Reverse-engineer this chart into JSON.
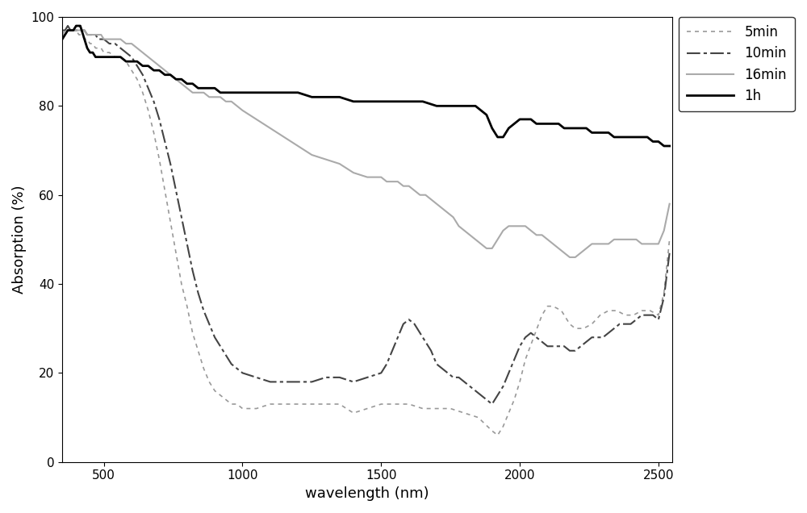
{
  "title": "",
  "xlabel": "wavelength (nm)",
  "ylabel": "Absorption (%)",
  "xlim": [
    350,
    2550
  ],
  "ylim": [
    0,
    100
  ],
  "xticks": [
    500,
    1000,
    1500,
    2000,
    2500
  ],
  "yticks": [
    0,
    20,
    40,
    60,
    80,
    100
  ],
  "figure_size": [
    10.0,
    6.36
  ],
  "dpi": 100,
  "series": [
    {
      "label": "5min",
      "color": "#999999",
      "linestyle": "dotted",
      "linewidth": 1.2,
      "points": [
        [
          350,
          96
        ],
        [
          360,
          97
        ],
        [
          370,
          98
        ],
        [
          380,
          97
        ],
        [
          390,
          97
        ],
        [
          400,
          97
        ],
        [
          410,
          96
        ],
        [
          420,
          96
        ],
        [
          430,
          95
        ],
        [
          440,
          95
        ],
        [
          450,
          94
        ],
        [
          460,
          94
        ],
        [
          470,
          93
        ],
        [
          480,
          93
        ],
        [
          490,
          93
        ],
        [
          500,
          92
        ],
        [
          520,
          92
        ],
        [
          540,
          91
        ],
        [
          560,
          91
        ],
        [
          580,
          90
        ],
        [
          600,
          88
        ],
        [
          620,
          86
        ],
        [
          640,
          83
        ],
        [
          660,
          79
        ],
        [
          680,
          74
        ],
        [
          700,
          68
        ],
        [
          720,
          61
        ],
        [
          740,
          54
        ],
        [
          760,
          47
        ],
        [
          780,
          40
        ],
        [
          800,
          35
        ],
        [
          820,
          29
        ],
        [
          840,
          25
        ],
        [
          860,
          21
        ],
        [
          880,
          18
        ],
        [
          900,
          16
        ],
        [
          920,
          15
        ],
        [
          940,
          14
        ],
        [
          960,
          13
        ],
        [
          980,
          13
        ],
        [
          1000,
          12
        ],
        [
          1050,
          12
        ],
        [
          1100,
          13
        ],
        [
          1150,
          13
        ],
        [
          1200,
          13
        ],
        [
          1250,
          13
        ],
        [
          1300,
          13
        ],
        [
          1350,
          13
        ],
        [
          1400,
          11
        ],
        [
          1450,
          12
        ],
        [
          1500,
          13
        ],
        [
          1550,
          13
        ],
        [
          1600,
          13
        ],
        [
          1650,
          12
        ],
        [
          1700,
          12
        ],
        [
          1750,
          12
        ],
        [
          1800,
          11
        ],
        [
          1850,
          10
        ],
        [
          1900,
          7
        ],
        [
          1920,
          6
        ],
        [
          1940,
          8
        ],
        [
          1960,
          11
        ],
        [
          1980,
          14
        ],
        [
          2000,
          18
        ],
        [
          2020,
          23
        ],
        [
          2050,
          28
        ],
        [
          2080,
          33
        ],
        [
          2100,
          35
        ],
        [
          2120,
          35
        ],
        [
          2150,
          34
        ],
        [
          2180,
          31
        ],
        [
          2200,
          30
        ],
        [
          2230,
          30
        ],
        [
          2260,
          31
        ],
        [
          2290,
          33
        ],
        [
          2320,
          34
        ],
        [
          2350,
          34
        ],
        [
          2380,
          33
        ],
        [
          2410,
          33
        ],
        [
          2440,
          34
        ],
        [
          2470,
          34
        ],
        [
          2500,
          33
        ],
        [
          2520,
          38
        ],
        [
          2540,
          50
        ]
      ]
    },
    {
      "label": "10min",
      "color": "#444444",
      "linestyle": "dashdot",
      "linewidth": 1.5,
      "points": [
        [
          350,
          97
        ],
        [
          360,
          97
        ],
        [
          370,
          98
        ],
        [
          380,
          97
        ],
        [
          390,
          97
        ],
        [
          400,
          97
        ],
        [
          410,
          97
        ],
        [
          420,
          97
        ],
        [
          430,
          97
        ],
        [
          440,
          96
        ],
        [
          450,
          96
        ],
        [
          460,
          96
        ],
        [
          470,
          96
        ],
        [
          480,
          95
        ],
        [
          490,
          95
        ],
        [
          500,
          95
        ],
        [
          520,
          94
        ],
        [
          540,
          94
        ],
        [
          560,
          93
        ],
        [
          580,
          92
        ],
        [
          600,
          91
        ],
        [
          620,
          89
        ],
        [
          640,
          87
        ],
        [
          660,
          84
        ],
        [
          680,
          81
        ],
        [
          700,
          77
        ],
        [
          720,
          72
        ],
        [
          740,
          67
        ],
        [
          760,
          61
        ],
        [
          780,
          55
        ],
        [
          800,
          49
        ],
        [
          820,
          43
        ],
        [
          840,
          38
        ],
        [
          860,
          34
        ],
        [
          880,
          31
        ],
        [
          900,
          28
        ],
        [
          920,
          26
        ],
        [
          940,
          24
        ],
        [
          960,
          22
        ],
        [
          980,
          21
        ],
        [
          1000,
          20
        ],
        [
          1050,
          19
        ],
        [
          1100,
          18
        ],
        [
          1150,
          18
        ],
        [
          1200,
          18
        ],
        [
          1250,
          18
        ],
        [
          1300,
          19
        ],
        [
          1350,
          19
        ],
        [
          1400,
          18
        ],
        [
          1450,
          19
        ],
        [
          1500,
          20
        ],
        [
          1520,
          22
        ],
        [
          1540,
          25
        ],
        [
          1560,
          28
        ],
        [
          1580,
          31
        ],
        [
          1600,
          32
        ],
        [
          1620,
          31
        ],
        [
          1640,
          29
        ],
        [
          1660,
          27
        ],
        [
          1680,
          25
        ],
        [
          1700,
          22
        ],
        [
          1720,
          21
        ],
        [
          1740,
          20
        ],
        [
          1760,
          19
        ],
        [
          1780,
          19
        ],
        [
          1800,
          18
        ],
        [
          1820,
          17
        ],
        [
          1840,
          16
        ],
        [
          1860,
          15
        ],
        [
          1880,
          14
        ],
        [
          1900,
          13
        ],
        [
          1920,
          15
        ],
        [
          1940,
          17
        ],
        [
          1960,
          20
        ],
        [
          1980,
          23
        ],
        [
          2000,
          26
        ],
        [
          2020,
          28
        ],
        [
          2040,
          29
        ],
        [
          2060,
          28
        ],
        [
          2080,
          27
        ],
        [
          2100,
          26
        ],
        [
          2120,
          26
        ],
        [
          2140,
          26
        ],
        [
          2160,
          26
        ],
        [
          2180,
          25
        ],
        [
          2200,
          25
        ],
        [
          2220,
          26
        ],
        [
          2240,
          27
        ],
        [
          2260,
          28
        ],
        [
          2280,
          28
        ],
        [
          2300,
          28
        ],
        [
          2320,
          29
        ],
        [
          2340,
          30
        ],
        [
          2360,
          31
        ],
        [
          2380,
          31
        ],
        [
          2400,
          31
        ],
        [
          2420,
          32
        ],
        [
          2440,
          33
        ],
        [
          2460,
          33
        ],
        [
          2480,
          33
        ],
        [
          2500,
          32
        ],
        [
          2520,
          37
        ],
        [
          2540,
          47
        ]
      ]
    },
    {
      "label": "16min",
      "color": "#aaaaaa",
      "linestyle": "solid",
      "linewidth": 1.5,
      "points": [
        [
          350,
          96
        ],
        [
          360,
          96
        ],
        [
          370,
          97
        ],
        [
          380,
          97
        ],
        [
          390,
          97
        ],
        [
          400,
          97
        ],
        [
          410,
          97
        ],
        [
          420,
          97
        ],
        [
          430,
          97
        ],
        [
          440,
          96
        ],
        [
          450,
          96
        ],
        [
          460,
          96
        ],
        [
          470,
          96
        ],
        [
          480,
          96
        ],
        [
          490,
          96
        ],
        [
          500,
          95
        ],
        [
          520,
          95
        ],
        [
          540,
          95
        ],
        [
          560,
          95
        ],
        [
          580,
          94
        ],
        [
          600,
          94
        ],
        [
          620,
          93
        ],
        [
          640,
          92
        ],
        [
          660,
          91
        ],
        [
          680,
          90
        ],
        [
          700,
          89
        ],
        [
          720,
          88
        ],
        [
          740,
          87
        ],
        [
          760,
          86
        ],
        [
          780,
          85
        ],
        [
          800,
          84
        ],
        [
          820,
          83
        ],
        [
          840,
          83
        ],
        [
          860,
          83
        ],
        [
          880,
          82
        ],
        [
          900,
          82
        ],
        [
          920,
          82
        ],
        [
          940,
          81
        ],
        [
          960,
          81
        ],
        [
          980,
          80
        ],
        [
          1000,
          79
        ],
        [
          1050,
          77
        ],
        [
          1100,
          75
        ],
        [
          1150,
          73
        ],
        [
          1200,
          71
        ],
        [
          1250,
          69
        ],
        [
          1300,
          68
        ],
        [
          1350,
          67
        ],
        [
          1400,
          65
        ],
        [
          1450,
          64
        ],
        [
          1500,
          64
        ],
        [
          1520,
          63
        ],
        [
          1540,
          63
        ],
        [
          1560,
          63
        ],
        [
          1580,
          62
        ],
        [
          1600,
          62
        ],
        [
          1620,
          61
        ],
        [
          1640,
          60
        ],
        [
          1660,
          60
        ],
        [
          1680,
          59
        ],
        [
          1700,
          58
        ],
        [
          1720,
          57
        ],
        [
          1740,
          56
        ],
        [
          1760,
          55
        ],
        [
          1780,
          53
        ],
        [
          1800,
          52
        ],
        [
          1820,
          51
        ],
        [
          1840,
          50
        ],
        [
          1860,
          49
        ],
        [
          1880,
          48
        ],
        [
          1900,
          48
        ],
        [
          1920,
          50
        ],
        [
          1940,
          52
        ],
        [
          1960,
          53
        ],
        [
          1980,
          53
        ],
        [
          2000,
          53
        ],
        [
          2020,
          53
        ],
        [
          2040,
          52
        ],
        [
          2060,
          51
        ],
        [
          2080,
          51
        ],
        [
          2100,
          50
        ],
        [
          2120,
          49
        ],
        [
          2140,
          48
        ],
        [
          2160,
          47
        ],
        [
          2180,
          46
        ],
        [
          2200,
          46
        ],
        [
          2220,
          47
        ],
        [
          2240,
          48
        ],
        [
          2260,
          49
        ],
        [
          2280,
          49
        ],
        [
          2300,
          49
        ],
        [
          2320,
          49
        ],
        [
          2340,
          50
        ],
        [
          2360,
          50
        ],
        [
          2380,
          50
        ],
        [
          2400,
          50
        ],
        [
          2420,
          50
        ],
        [
          2440,
          49
        ],
        [
          2480,
          49
        ],
        [
          2500,
          49
        ],
        [
          2520,
          52
        ],
        [
          2540,
          58
        ]
      ]
    },
    {
      "label": "1h",
      "color": "#000000",
      "linestyle": "solid",
      "linewidth": 2.0,
      "points": [
        [
          350,
          95
        ],
        [
          360,
          96
        ],
        [
          370,
          97
        ],
        [
          380,
          97
        ],
        [
          390,
          97
        ],
        [
          400,
          98
        ],
        [
          410,
          98
        ],
        [
          415,
          98
        ],
        [
          420,
          97
        ],
        [
          425,
          96
        ],
        [
          430,
          95
        ],
        [
          440,
          93
        ],
        [
          450,
          92
        ],
        [
          460,
          92
        ],
        [
          470,
          91
        ],
        [
          480,
          91
        ],
        [
          490,
          91
        ],
        [
          500,
          91
        ],
        [
          520,
          91
        ],
        [
          540,
          91
        ],
        [
          560,
          91
        ],
        [
          580,
          90
        ],
        [
          600,
          90
        ],
        [
          620,
          90
        ],
        [
          640,
          89
        ],
        [
          660,
          89
        ],
        [
          680,
          88
        ],
        [
          700,
          88
        ],
        [
          720,
          87
        ],
        [
          740,
          87
        ],
        [
          760,
          86
        ],
        [
          780,
          86
        ],
        [
          800,
          85
        ],
        [
          820,
          85
        ],
        [
          840,
          84
        ],
        [
          860,
          84
        ],
        [
          880,
          84
        ],
        [
          900,
          84
        ],
        [
          920,
          83
        ],
        [
          940,
          83
        ],
        [
          960,
          83
        ],
        [
          980,
          83
        ],
        [
          1000,
          83
        ],
        [
          1050,
          83
        ],
        [
          1100,
          83
        ],
        [
          1150,
          83
        ],
        [
          1200,
          83
        ],
        [
          1250,
          82
        ],
        [
          1300,
          82
        ],
        [
          1350,
          82
        ],
        [
          1400,
          81
        ],
        [
          1450,
          81
        ],
        [
          1500,
          81
        ],
        [
          1550,
          81
        ],
        [
          1600,
          81
        ],
        [
          1650,
          81
        ],
        [
          1700,
          80
        ],
        [
          1750,
          80
        ],
        [
          1800,
          80
        ],
        [
          1820,
          80
        ],
        [
          1840,
          80
        ],
        [
          1860,
          79
        ],
        [
          1880,
          78
        ],
        [
          1900,
          75
        ],
        [
          1920,
          73
        ],
        [
          1940,
          73
        ],
        [
          1960,
          75
        ],
        [
          1980,
          76
        ],
        [
          2000,
          77
        ],
        [
          2020,
          77
        ],
        [
          2040,
          77
        ],
        [
          2060,
          76
        ],
        [
          2080,
          76
        ],
        [
          2100,
          76
        ],
        [
          2120,
          76
        ],
        [
          2140,
          76
        ],
        [
          2160,
          75
        ],
        [
          2180,
          75
        ],
        [
          2200,
          75
        ],
        [
          2220,
          75
        ],
        [
          2240,
          75
        ],
        [
          2260,
          74
        ],
        [
          2280,
          74
        ],
        [
          2300,
          74
        ],
        [
          2320,
          74
        ],
        [
          2340,
          73
        ],
        [
          2360,
          73
        ],
        [
          2380,
          73
        ],
        [
          2400,
          73
        ],
        [
          2420,
          73
        ],
        [
          2440,
          73
        ],
        [
          2460,
          73
        ],
        [
          2480,
          72
        ],
        [
          2500,
          72
        ],
        [
          2520,
          71
        ],
        [
          2540,
          71
        ]
      ]
    }
  ]
}
